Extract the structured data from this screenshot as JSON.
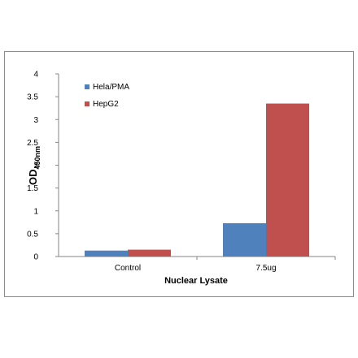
{
  "chart_data": {
    "type": "bar",
    "title": "",
    "xlabel": "Nuclear Lysate",
    "ylabel_main": "OD",
    "ylabel_sub": "450nm",
    "categories": [
      "Control",
      "7.5ug"
    ],
    "series": [
      {
        "name": "Hela/PMA",
        "color": "#4f81bd",
        "values": [
          0.13,
          0.73
        ]
      },
      {
        "name": "HepG2",
        "color": "#c0504d",
        "values": [
          0.15,
          3.35
        ]
      }
    ],
    "ylim": [
      0,
      4
    ],
    "yticks": [
      "0",
      "0.5",
      "1",
      "1.5",
      "2",
      "2.5",
      "3",
      "3.5",
      "4"
    ],
    "grid": false,
    "legend_position": "top-left inside plot"
  }
}
